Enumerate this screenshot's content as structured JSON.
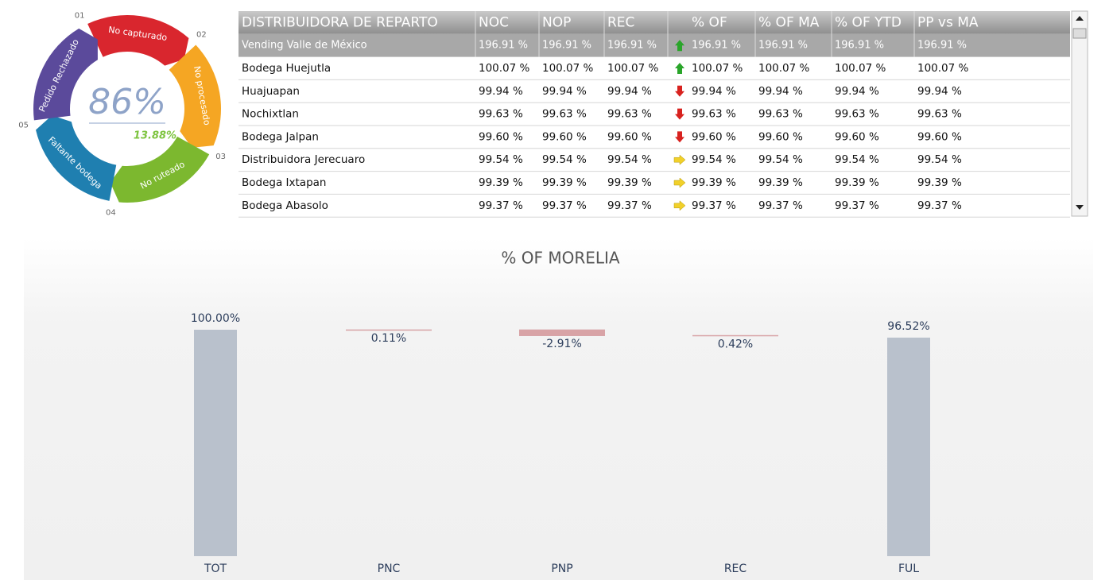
{
  "donut": {
    "center_value": "86%",
    "center_sub": "13.88%",
    "segments": [
      {
        "step": "01",
        "label": "No capturado",
        "color": "#d9262e"
      },
      {
        "step": "02",
        "label": "No procesado",
        "color": "#f5a623"
      },
      {
        "step": "03",
        "label": "No ruteado",
        "color": "#7cb82f"
      },
      {
        "step": "04",
        "label": "Faltante bodega",
        "color": "#1f7fb0"
      },
      {
        "step": "05",
        "label": "Pedido Rechazado",
        "color": "#5b4a9b"
      }
    ]
  },
  "table": {
    "header": [
      "DISTRIBUIDORA DE REPARTO",
      "NOC",
      "NOP",
      "REC",
      "% OF",
      "% OF MA",
      "% OF YTD",
      "PP vs MA"
    ],
    "total": [
      "Vending Valle de México",
      "196.91 %",
      "196.91 %",
      "196.91 %",
      "196.91 %",
      "196.91 %",
      "196.91 %",
      "196.91 %"
    ],
    "rows": [
      [
        "Bodega Huejutla",
        "100.07 %",
        "100.07 %",
        "100.07 %",
        "100.07 %",
        "100.07 %",
        "100.07 %",
        "100.07 %"
      ],
      [
        "Huajuapan",
        "99.94 %",
        "99.94 %",
        "99.94 %",
        "99.94 %",
        "99.94 %",
        "99.94 %",
        "99.94 %"
      ],
      [
        "Nochixtlan",
        "99.63 %",
        "99.63 %",
        "99.63 %",
        "99.63 %",
        "99.63 %",
        "99.63 %",
        "99.63 %"
      ],
      [
        "Bodega Jalpan",
        "99.60 %",
        "99.60 %",
        "99.60 %",
        "99.60 %",
        "99.60 %",
        "99.60 %",
        "99.60 %"
      ],
      [
        "Distribuidora Jerecuaro",
        "99.54 %",
        "99.54 %",
        "99.54 %",
        "99.54 %",
        "99.54 %",
        "99.54 %",
        "99.54 %"
      ],
      [
        "Bodega Ixtapan",
        "99.39 %",
        "99.39 %",
        "99.39 %",
        "99.39 %",
        "99.39 %",
        "99.39 %",
        "99.39 %"
      ],
      [
        "Bodega Abasolo",
        "99.37 %",
        "99.37 %",
        "99.37 %",
        "99.37 %",
        "99.37 %",
        "99.37 %",
        "99.37 %"
      ]
    ]
  },
  "chart_data": {
    "type": "waterfall",
    "title": "% OF MORELIA",
    "categories": [
      "TOT",
      "PNC",
      "PNP",
      "REC",
      "FUL"
    ],
    "values": [
      100,
      0.11,
      -2.91,
      0.42,
      96.52
    ],
    "value_labels": [
      "100.00%",
      "0.11%",
      "-2.91%",
      "0.42%",
      "96.52%"
    ],
    "total_color": "#b9c1cc",
    "delta_color": "#d8a3a6"
  }
}
